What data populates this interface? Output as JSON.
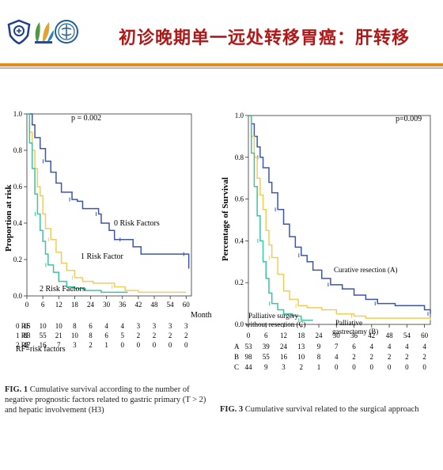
{
  "header": {
    "title": "初诊晚期单一远处转移胃癌：肝转移",
    "colors": {
      "title": "#b01818",
      "rule": "#e58a1c"
    }
  },
  "logos": [
    "hospital-shield-logo",
    "university-logo",
    "medical-center-logo"
  ],
  "chart_data": [
    {
      "type": "line",
      "ylabel": "Proportion at risk",
      "xlabel_unit": "Month",
      "x_ticks": [
        "0",
        "6",
        "12",
        "18",
        "24",
        "30",
        "36",
        "42",
        "48",
        "54",
        "60"
      ],
      "y_ticks": [
        "0.0",
        "0.2",
        "0.4",
        "0.6",
        "0.8",
        "1.0"
      ],
      "xlim": [
        0,
        62
      ],
      "ylim": [
        0,
        1.0
      ],
      "pvalue": "p = 0.002",
      "series": [
        {
          "name": "0 Risk Factors",
          "color": "#3d56a8",
          "points": [
            [
              0,
              1.0
            ],
            [
              2,
              0.94
            ],
            [
              3,
              0.87
            ],
            [
              5,
              0.81
            ],
            [
              7,
              0.74
            ],
            [
              9,
              0.68
            ],
            [
              11,
              0.62
            ],
            [
              13,
              0.57
            ],
            [
              17,
              0.53
            ],
            [
              19,
              0.52
            ],
            [
              21,
              0.48
            ],
            [
              24,
              0.48
            ],
            [
              27,
              0.45
            ],
            [
              28,
              0.4
            ],
            [
              31,
              0.36
            ],
            [
              33,
              0.31
            ],
            [
              36,
              0.31
            ],
            [
              40,
              0.27
            ],
            [
              43,
              0.23
            ],
            [
              50,
              0.23
            ],
            [
              60,
              0.23
            ],
            [
              61,
              0.15
            ]
          ]
        },
        {
          "name": "1 Risk Factor",
          "color": "#f2cc5a",
          "points": [
            [
              0,
              1.0
            ],
            [
              1,
              0.9
            ],
            [
              2,
              0.8
            ],
            [
              3,
              0.7
            ],
            [
              4,
              0.6
            ],
            [
              5,
              0.55
            ],
            [
              6,
              0.45
            ],
            [
              7,
              0.37
            ],
            [
              9,
              0.31
            ],
            [
              11,
              0.24
            ],
            [
              13,
              0.18
            ],
            [
              15,
              0.14
            ],
            [
              18,
              0.1
            ],
            [
              21,
              0.08
            ],
            [
              25,
              0.07
            ],
            [
              30,
              0.07
            ],
            [
              33,
              0.05
            ],
            [
              37,
              0.03
            ],
            [
              42,
              0.02
            ],
            [
              60,
              0.02
            ]
          ]
        },
        {
          "name": "2 Risk Factors",
          "color": "#3ec4a2",
          "points": [
            [
              0,
              1.0
            ],
            [
              1,
              0.84
            ],
            [
              2,
              0.7
            ],
            [
              3,
              0.56
            ],
            [
              4,
              0.45
            ],
            [
              5,
              0.36
            ],
            [
              6,
              0.3
            ],
            [
              7,
              0.23
            ],
            [
              8,
              0.17
            ],
            [
              10,
              0.13
            ],
            [
              12,
              0.08
            ],
            [
              15,
              0.05
            ],
            [
              18,
              0.04
            ],
            [
              22,
              0.03
            ],
            [
              28,
              0.02
            ],
            [
              38,
              0.02
            ]
          ]
        }
      ],
      "labels": {
        "curve0": "0 Risk Factors",
        "curve1": "1 Risk Factor",
        "curve2": "2 Risk Factors"
      },
      "risk_table": {
        "rows": [
          {
            "label": "0 RF",
            "values": [
              "15",
              "10",
              "10",
              "8",
              "6",
              "4",
              "4",
              "3",
              "3",
              "3",
              "3"
            ]
          },
          {
            "label": "1 RF",
            "values": [
              "83",
              "55",
              "21",
              "10",
              "8",
              "6",
              "5",
              "2",
              "2",
              "2",
              "2"
            ]
          },
          {
            "label": "2 RF",
            "values": [
              "47",
              "16",
              "7",
              "3",
              "2",
              "1",
              "0",
              "0",
              "0",
              "0",
              "0"
            ]
          }
        ],
        "footnote": "RF=risk factors"
      },
      "caption": {
        "fig": "FIG. 1",
        "text": "Cumulative survival according to the number of negative prognostic factors related to gastric primary (T > 2) and hepatic involvement (H3)"
      }
    },
    {
      "type": "line",
      "ylabel": "Percentage of Survival",
      "x_ticks": [
        "0",
        "6",
        "12",
        "18",
        "24",
        "30",
        "36",
        "42",
        "48",
        "54",
        "60"
      ],
      "y_ticks": [
        "0.0",
        "0.2",
        "0.4",
        "0.6",
        "0.8",
        "1.0"
      ],
      "xlim": [
        0,
        62
      ],
      "ylim": [
        0,
        1.0
      ],
      "pvalue": "p=0.009",
      "series": [
        {
          "name": "Curative resection (A)",
          "color": "#3d56a8",
          "points": [
            [
              0,
              1.0
            ],
            [
              1,
              0.96
            ],
            [
              2,
              0.9
            ],
            [
              3,
              0.85
            ],
            [
              4,
              0.8
            ],
            [
              5,
              0.75
            ],
            [
              7,
              0.68
            ],
            [
              8,
              0.63
            ],
            [
              10,
              0.55
            ],
            [
              12,
              0.48
            ],
            [
              14,
              0.42
            ],
            [
              16,
              0.37
            ],
            [
              18,
              0.33
            ],
            [
              20,
              0.3
            ],
            [
              22,
              0.26
            ],
            [
              25,
              0.22
            ],
            [
              28,
              0.19
            ],
            [
              32,
              0.17
            ],
            [
              36,
              0.14
            ],
            [
              40,
              0.12
            ],
            [
              44,
              0.1
            ],
            [
              50,
              0.09
            ],
            [
              56,
              0.09
            ],
            [
              60,
              0.07
            ],
            [
              62,
              0.05
            ]
          ]
        },
        {
          "name": "Palliative gastrectomy (B)",
          "color": "#f2cc5a",
          "points": [
            [
              0,
              1.0
            ],
            [
              1,
              0.9
            ],
            [
              2,
              0.8
            ],
            [
              3,
              0.7
            ],
            [
              4,
              0.62
            ],
            [
              5,
              0.55
            ],
            [
              6,
              0.45
            ],
            [
              7,
              0.38
            ],
            [
              8,
              0.32
            ],
            [
              10,
              0.24
            ],
            [
              12,
              0.16
            ],
            [
              14,
              0.12
            ],
            [
              17,
              0.09
            ],
            [
              20,
              0.08
            ],
            [
              25,
              0.07
            ],
            [
              30,
              0.05
            ],
            [
              36,
              0.04
            ],
            [
              40,
              0.03
            ],
            [
              62,
              0.02
            ]
          ]
        },
        {
          "name": "Palliative surgery without resection (C)",
          "color": "#3ec4a2",
          "points": [
            [
              0,
              1.0
            ],
            [
              1,
              0.82
            ],
            [
              2,
              0.66
            ],
            [
              3,
              0.52
            ],
            [
              4,
              0.4
            ],
            [
              5,
              0.3
            ],
            [
              6,
              0.22
            ],
            [
              7,
              0.15
            ],
            [
              8,
              0.1
            ],
            [
              10,
              0.07
            ],
            [
              12,
              0.05
            ],
            [
              15,
              0.04
            ],
            [
              18,
              0.02
            ],
            [
              22,
              0.02
            ]
          ]
        }
      ],
      "labels": {
        "curve0": "Curative resection (A)",
        "curve1_line1": "Palliative",
        "curve1_line2": "gastrectomy (B)",
        "curve2_line1": "Palliative surgery",
        "curve2_line2": "without resection (C)"
      },
      "risk_table": {
        "rows": [
          {
            "label": "A",
            "values": [
              "53",
              "39",
              "24",
              "13",
              "9",
              "7",
              "6",
              "4",
              "4",
              "4",
              "4"
            ]
          },
          {
            "label": "B",
            "values": [
              "98",
              "55",
              "16",
              "10",
              "8",
              "4",
              "2",
              "2",
              "2",
              "2",
              "2"
            ]
          },
          {
            "label": "C",
            "values": [
              "44",
              "9",
              "3",
              "2",
              "1",
              "0",
              "0",
              "0",
              "0",
              "0",
              "0"
            ]
          }
        ]
      },
      "caption": {
        "fig": "FIG. 3",
        "text": "Cumulative survival related to the surgical approach"
      }
    }
  ]
}
